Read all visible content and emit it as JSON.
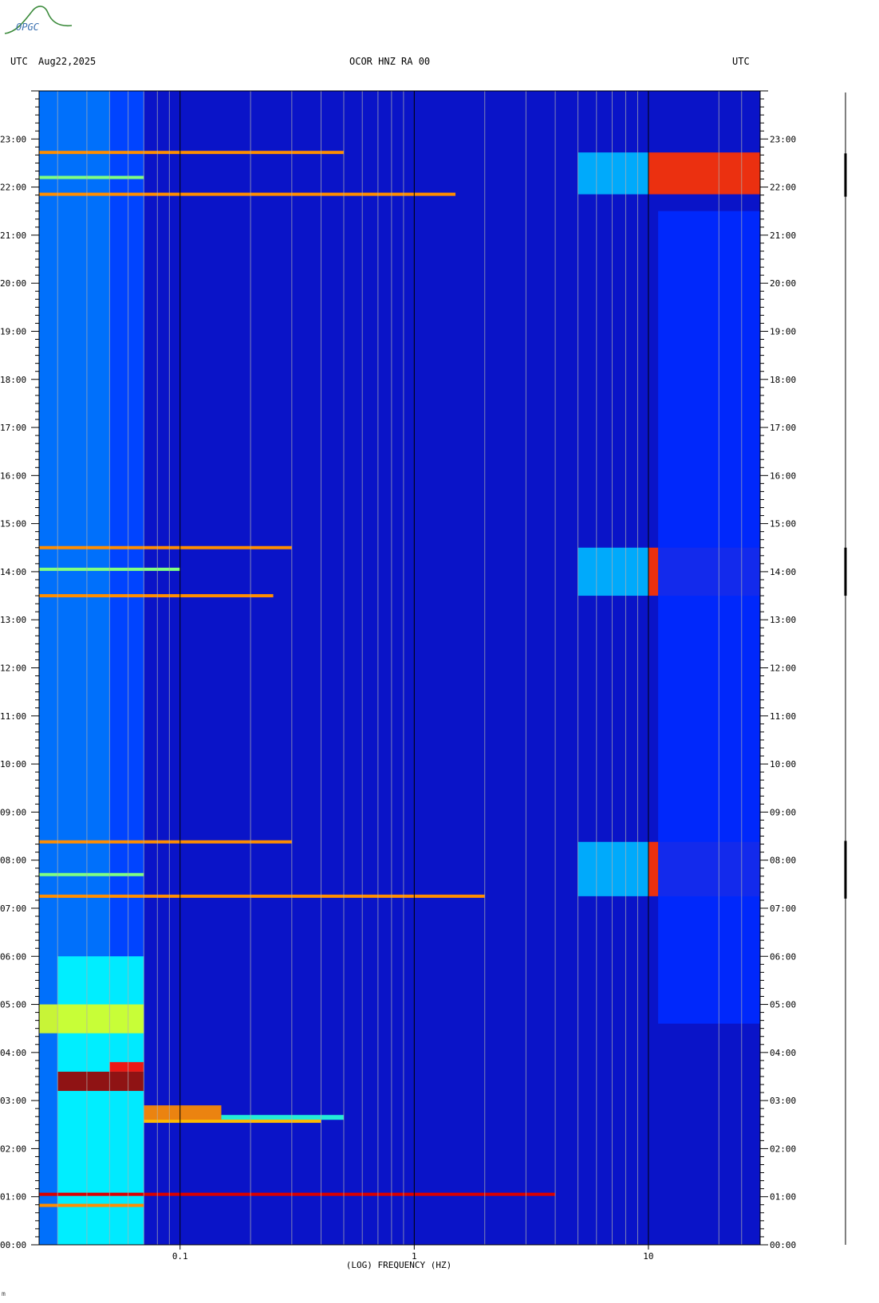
{
  "logo": {
    "text": "OPGC"
  },
  "header": {
    "utc_left": "UTC",
    "date": "Aug22,2025",
    "station": "OCOR HNZ RA 00",
    "utc_right": "UTC"
  },
  "footer": {
    "mark": "m"
  },
  "chart_data": {
    "type": "heatmap",
    "title": "OCOR HNZ RA 00",
    "xlabel": "(LOG) FREQUENCY (HZ)",
    "x_scale": "log",
    "xlim": [
      0.025,
      30
    ],
    "x_ticks": [
      {
        "value": 0.1,
        "label": "0.1"
      },
      {
        "value": 1,
        "label": "1"
      },
      {
        "value": 10,
        "label": "10"
      }
    ],
    "y_unit": "hours UTC",
    "ylim": [
      0,
      24
    ],
    "y_ticks": [
      {
        "value": 0,
        "label": "00:00"
      },
      {
        "value": 1,
        "label": "01:00"
      },
      {
        "value": 2,
        "label": "02:00"
      },
      {
        "value": 3,
        "label": "03:00"
      },
      {
        "value": 4,
        "label": "04:00"
      },
      {
        "value": 5,
        "label": "05:00"
      },
      {
        "value": 6,
        "label": "06:00"
      },
      {
        "value": 7,
        "label": "07:00"
      },
      {
        "value": 8,
        "label": "08:00"
      },
      {
        "value": 9,
        "label": "09:00"
      },
      {
        "value": 10,
        "label": "10:00"
      },
      {
        "value": 11,
        "label": "11:00"
      },
      {
        "value": 12,
        "label": "12:00"
      },
      {
        "value": 13,
        "label": "13:00"
      },
      {
        "value": 14,
        "label": "14:00"
      },
      {
        "value": 15,
        "label": "15:00"
      },
      {
        "value": 16,
        "label": "16:00"
      },
      {
        "value": 17,
        "label": "17:00"
      },
      {
        "value": 18,
        "label": "18:00"
      },
      {
        "value": 19,
        "label": "19:00"
      },
      {
        "value": 20,
        "label": "20:00"
      },
      {
        "value": 21,
        "label": "21:00"
      },
      {
        "value": 22,
        "label": "22:00"
      },
      {
        "value": 23,
        "label": "23:00"
      }
    ],
    "colormap": [
      "#00008f",
      "#0000ff",
      "#00a0ff",
      "#00ffff",
      "#ffff00",
      "#ff8000",
      "#ff0000",
      "#800000"
    ],
    "background_color": "#0a14c8",
    "regions": [
      {
        "t0": 0.0,
        "t1": 24.0,
        "f0": 0.025,
        "f1": 0.07,
        "level": 0.25
      },
      {
        "t0": 0.0,
        "t1": 24.0,
        "f0": 0.05,
        "f1": 0.07,
        "level": 0.2
      },
      {
        "t0": 0.0,
        "t1": 6.0,
        "f0": 0.03,
        "f1": 0.07,
        "level": 0.42
      },
      {
        "t0": 4.4,
        "t1": 5.0,
        "f0": 0.025,
        "f1": 0.07,
        "level": 0.55
      },
      {
        "t0": 3.2,
        "t1": 3.6,
        "f0": 0.03,
        "f1": 0.07,
        "level": 0.97
      },
      {
        "t0": 3.6,
        "t1": 3.8,
        "f0": 0.05,
        "f1": 0.07,
        "level": 0.85
      },
      {
        "t0": 2.6,
        "t1": 2.9,
        "f0": 0.07,
        "f1": 0.15,
        "level": 0.7
      },
      {
        "t0": 2.6,
        "t1": 2.7,
        "f0": 0.15,
        "f1": 0.5,
        "level": 0.45
      },
      {
        "t0": 7.25,
        "t1": 8.38,
        "f0": 10,
        "f1": 30,
        "level": 0.8
      },
      {
        "t0": 7.25,
        "t1": 8.38,
        "f0": 5,
        "f1": 10,
        "level": 0.32
      },
      {
        "t0": 13.5,
        "t1": 14.5,
        "f0": 10,
        "f1": 30,
        "level": 0.8
      },
      {
        "t0": 13.5,
        "t1": 14.5,
        "f0": 5,
        "f1": 10,
        "level": 0.32
      },
      {
        "t0": 21.85,
        "t1": 22.72,
        "f0": 10,
        "f1": 30,
        "level": 0.8
      },
      {
        "t0": 21.85,
        "t1": 22.72,
        "f0": 5,
        "f1": 10,
        "level": 0.32
      },
      {
        "t0": 4.6,
        "t1": 21.5,
        "f0": 11,
        "f1": 30,
        "level": 0.18
      }
    ],
    "bands": [
      {
        "t": 1.05,
        "f0": 0.025,
        "f1": 4,
        "level": 0.9
      },
      {
        "t": 0.82,
        "f0": 0.025,
        "f1": 0.07,
        "level": 0.7
      },
      {
        "t": 2.57,
        "f0": 0.07,
        "f1": 0.4,
        "level": 0.65
      },
      {
        "t": 7.25,
        "f0": 0.025,
        "f1": 2,
        "level": 0.7
      },
      {
        "t": 8.38,
        "f0": 0.025,
        "f1": 0.3,
        "level": 0.7
      },
      {
        "t": 7.7,
        "f0": 0.025,
        "f1": 0.07,
        "level": 0.5
      },
      {
        "t": 13.5,
        "f0": 0.025,
        "f1": 0.25,
        "level": 0.7
      },
      {
        "t": 14.5,
        "f0": 0.025,
        "f1": 0.3,
        "level": 0.7
      },
      {
        "t": 14.05,
        "f0": 0.025,
        "f1": 0.1,
        "level": 0.5
      },
      {
        "t": 21.85,
        "f0": 0.025,
        "f1": 1.5,
        "level": 0.7
      },
      {
        "t": 22.72,
        "f0": 0.025,
        "f1": 0.5,
        "level": 0.7
      },
      {
        "t": 22.2,
        "f0": 0.025,
        "f1": 0.07,
        "level": 0.5
      }
    ],
    "grid_lines_hz": [
      0.03,
      0.04,
      0.05,
      0.06,
      0.07,
      0.08,
      0.09,
      0.2,
      0.3,
      0.4,
      0.5,
      0.6,
      0.7,
      0.8,
      0.9,
      2,
      3,
      4,
      5,
      6,
      7,
      8,
      9,
      20,
      25
    ]
  }
}
